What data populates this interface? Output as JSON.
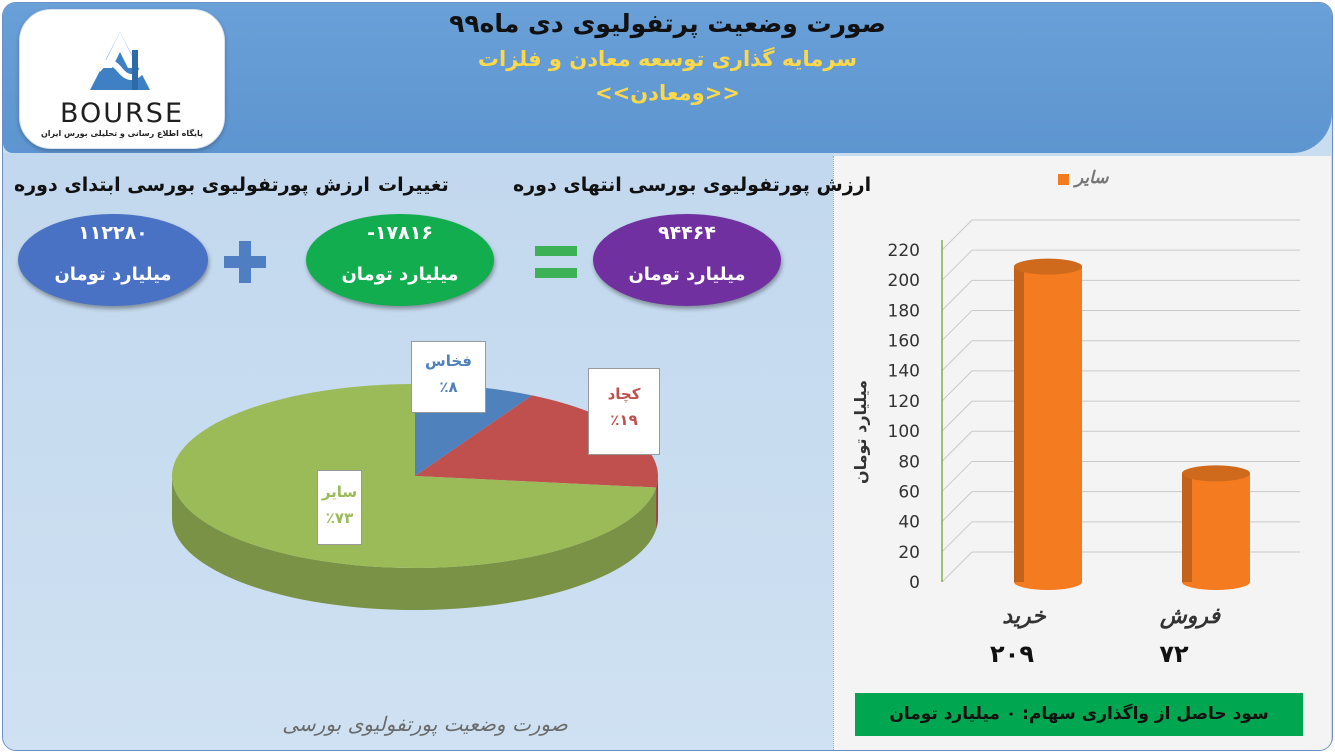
{
  "header": {
    "title": "صورت وضعیت پرتفولیوی دی ماه۹۹",
    "subtitle": "سرمایه گذاری توسعه معادن و فلزات",
    "symbol": "<<ومعادن>>"
  },
  "logo": {
    "name": "BOURSE",
    "caption": "پایگاه اطلاع رسانی و تحلیلی بورس ایران"
  },
  "summary": {
    "start": {
      "label": "ارزش پورتفولیوی بورسی ابتدای دوره",
      "value": "۱۱۲۲۸۰",
      "unit": "میلیارد تومان",
      "color": "#4a72c4"
    },
    "change": {
      "label": "تغییرات",
      "value": "-۱۷۸۱۶",
      "unit": "میلیارد تومان",
      "color": "#12ad4e"
    },
    "end": {
      "label": "ارزش پورتفولیوی بورسی انتهای دوره",
      "value": "۹۴۴۶۴",
      "unit": "میلیارد تومان",
      "color": "#7030a0"
    },
    "plus_symbol": "+",
    "equals_symbol": "="
  },
  "pie_caption": "صورت وضعیت پورتفولیوی بورسی",
  "right_panel": {
    "profit_text": "سود حاصل از واگذاری سهام: ۰ میلیارد تومان",
    "category_values": [
      "۲۰۹",
      "۷۲"
    ]
  },
  "chart_data": [
    {
      "type": "pie",
      "categories": [
        "فخاس",
        "کچاد",
        "سایر"
      ],
      "values": [
        8,
        19,
        73
      ],
      "value_labels": [
        "٪۸",
        "٪۱۹",
        "٪۷۳"
      ],
      "colors": [
        "#4f81bd",
        "#c0504d",
        "#9bbb59"
      ]
    },
    {
      "type": "bar",
      "categories": [
        "خرید",
        "فروش"
      ],
      "series": [
        {
          "name": "سایر",
          "values": [
            209,
            72
          ],
          "color": "#f47b20"
        }
      ],
      "ylabel": "میلیارد تومان",
      "ylim": [
        0,
        220
      ],
      "yticks": [
        0,
        20,
        40,
        60,
        80,
        100,
        120,
        140,
        160,
        180,
        200,
        220
      ],
      "grid": true,
      "legend": "top"
    }
  ]
}
